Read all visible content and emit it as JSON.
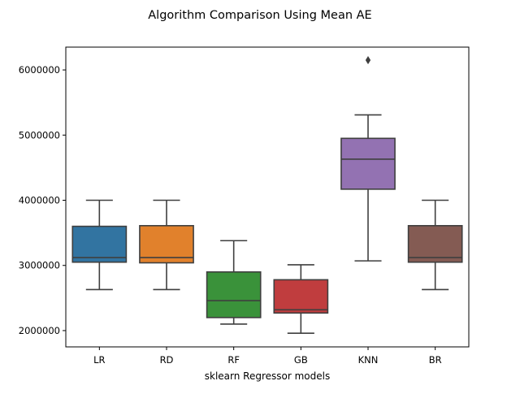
{
  "chart_data": {
    "type": "box",
    "title": "Algorithm Comparison Using Mean AE",
    "xlabel": "sklearn Regressor models",
    "ylabel": "",
    "ylim": [
      1750000,
      6350000
    ],
    "yticks": [
      2000000,
      3000000,
      4000000,
      5000000,
      6000000
    ],
    "yticklabels": [
      "2000000",
      "3000000",
      "4000000",
      "5000000",
      "6000000"
    ],
    "grid": false,
    "categories": [
      "LR",
      "RD",
      "RF",
      "GB",
      "KNN",
      "BR"
    ],
    "boxes": [
      {
        "label": "LR",
        "color": "#3274a1",
        "whislo": 2630000,
        "q1": 3050000,
        "med": 3120000,
        "q3": 3600000,
        "whishi": 4000000,
        "fliers": []
      },
      {
        "label": "RD",
        "color": "#e1812c",
        "whislo": 2630000,
        "q1": 3040000,
        "med": 3120000,
        "q3": 3610000,
        "whishi": 4000000,
        "fliers": []
      },
      {
        "label": "RF",
        "color": "#3a923a",
        "whislo": 2100000,
        "q1": 2200000,
        "med": 2460000,
        "q3": 2900000,
        "whishi": 3380000,
        "fliers": []
      },
      {
        "label": "GB",
        "color": "#c03d3e",
        "whislo": 1960000,
        "q1": 2270000,
        "med": 2320000,
        "q3": 2780000,
        "whishi": 3010000,
        "fliers": []
      },
      {
        "label": "KNN",
        "color": "#9372b2",
        "whislo": 3070000,
        "q1": 4170000,
        "med": 4630000,
        "q3": 4950000,
        "whishi": 5310000,
        "fliers": [
          6150000
        ]
      },
      {
        "label": "BR",
        "color": "#845b53",
        "whislo": 2630000,
        "q1": 3050000,
        "med": 3120000,
        "q3": 3610000,
        "whishi": 4000000,
        "fliers": []
      }
    ],
    "line_color": "#3f3f3f"
  }
}
